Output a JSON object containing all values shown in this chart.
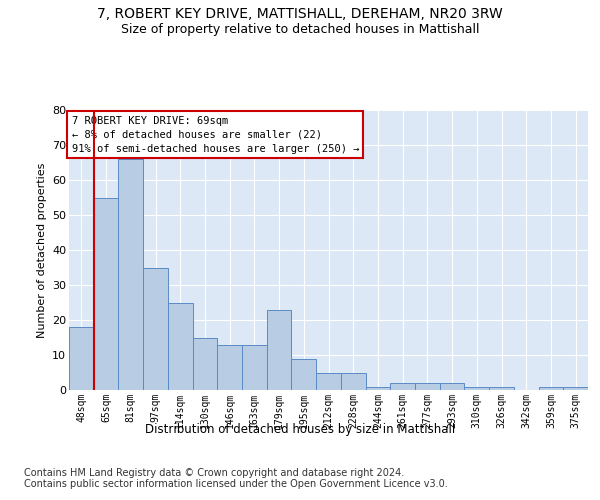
{
  "title": "7, ROBERT KEY DRIVE, MATTISHALL, DEREHAM, NR20 3RW",
  "subtitle": "Size of property relative to detached houses in Mattishall",
  "xlabel": "Distribution of detached houses by size in Mattishall",
  "ylabel": "Number of detached properties",
  "categories": [
    "48sqm",
    "65sqm",
    "81sqm",
    "97sqm",
    "114sqm",
    "130sqm",
    "146sqm",
    "163sqm",
    "179sqm",
    "195sqm",
    "212sqm",
    "228sqm",
    "244sqm",
    "261sqm",
    "277sqm",
    "293sqm",
    "310sqm",
    "326sqm",
    "342sqm",
    "359sqm",
    "375sqm"
  ],
  "values": [
    18,
    55,
    66,
    35,
    25,
    15,
    13,
    13,
    23,
    9,
    5,
    5,
    1,
    2,
    2,
    2,
    1,
    1,
    0,
    1,
    1
  ],
  "bar_color": "#b8cce4",
  "bar_edge_color": "#5a8ac6",
  "vline_color": "#cc0000",
  "vline_x_index": 1,
  "annotation_text": "7 ROBERT KEY DRIVE: 69sqm\n← 8% of detached houses are smaller (22)\n91% of semi-detached houses are larger (250) →",
  "annotation_box_color": "#ffffff",
  "annotation_box_edge": "#cc0000",
  "ylim": [
    0,
    80
  ],
  "yticks": [
    0,
    10,
    20,
    30,
    40,
    50,
    60,
    70,
    80
  ],
  "footer_text": "Contains HM Land Registry data © Crown copyright and database right 2024.\nContains public sector information licensed under the Open Government Licence v3.0.",
  "plot_bg_color": "#dce8f5",
  "title_fontsize": 10,
  "subtitle_fontsize": 9,
  "footer_fontsize": 7
}
